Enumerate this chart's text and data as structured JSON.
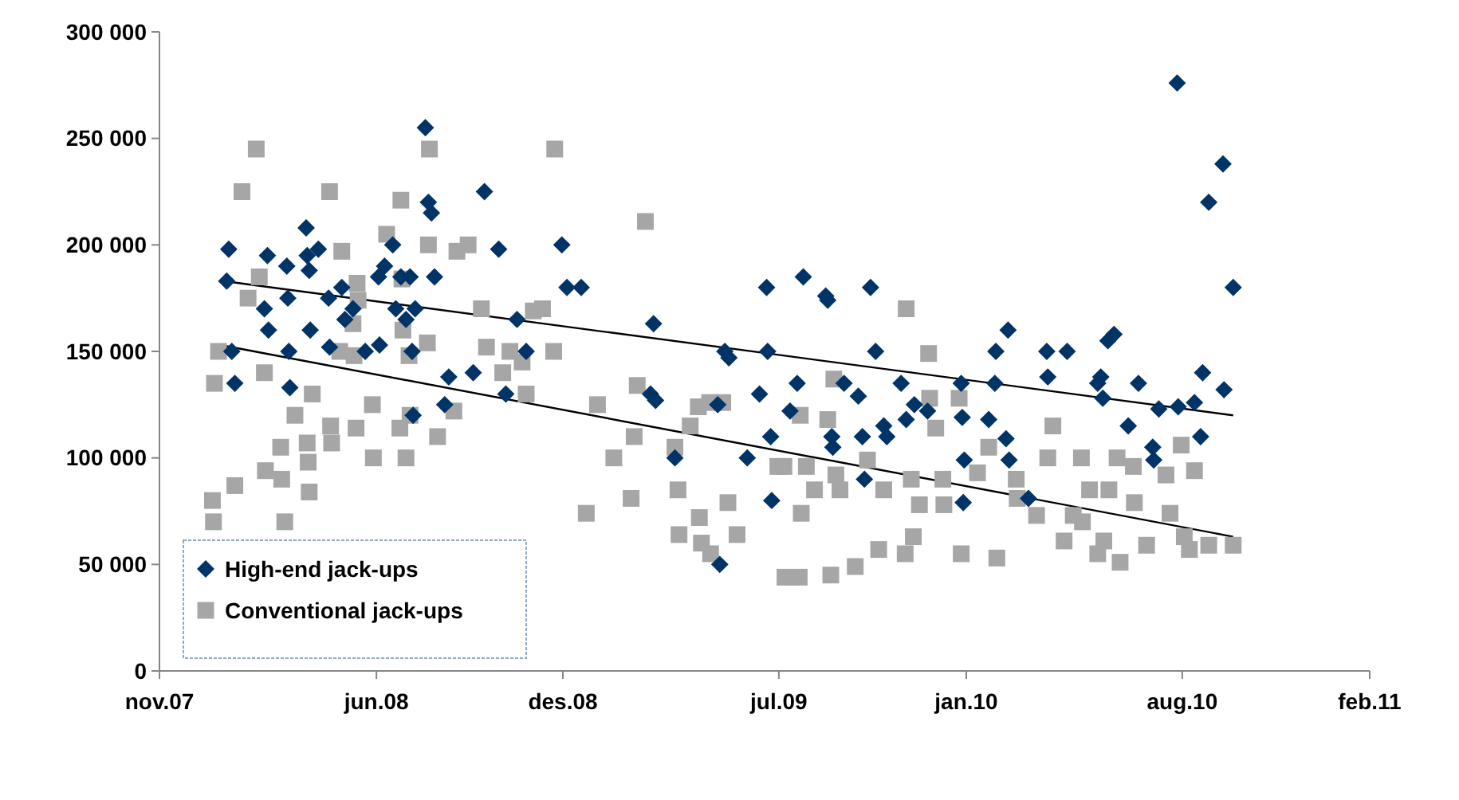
{
  "chart_data": {
    "type": "scatter",
    "xlim": [
      "2007-11-01",
      "2011-02-01"
    ],
    "xticks": [
      {
        "value": "2007-11-01",
        "label": "nov.07"
      },
      {
        "value": "2008-06-01",
        "label": "jun.08"
      },
      {
        "value": "2008-12-01",
        "label": "des.08"
      },
      {
        "value": "2009-07-01",
        "label": "jul.09"
      },
      {
        "value": "2010-01-01",
        "label": "jan.10"
      },
      {
        "value": "2010-08-01",
        "label": "aug.10"
      },
      {
        "value": "2011-02-01",
        "label": "feb.11"
      }
    ],
    "ylim": [
      0,
      300000
    ],
    "yticks": [
      {
        "value": 0,
        "label": "0"
      },
      {
        "value": 50000,
        "label": "50 000"
      },
      {
        "value": 100000,
        "label": "100 000"
      },
      {
        "value": 150000,
        "label": "150 000"
      },
      {
        "value": 200000,
        "label": "200 000"
      },
      {
        "value": 250000,
        "label": "250 000"
      },
      {
        "value": 300000,
        "label": "300 000"
      }
    ],
    "grid": false,
    "legend": "bottom left",
    "series": [
      {
        "name": "High-end jack-ups",
        "marker": "diamond",
        "color": "#003366",
        "x": [
          "2008-01-08",
          "2008-01-06",
          "2008-01-11",
          "2008-01-14",
          "2008-02-12",
          "2008-02-15",
          "2008-02-16",
          "2008-03-05",
          "2008-03-06",
          "2008-03-07",
          "2008-03-08",
          "2008-03-24",
          "2008-03-25",
          "2008-03-27",
          "2008-03-28",
          "2008-04-05",
          "2008-04-15",
          "2008-04-16",
          "2008-04-28",
          "2008-05-01",
          "2008-05-09",
          "2008-05-21",
          "2008-06-03",
          "2008-06-04",
          "2008-06-09",
          "2008-06-17",
          "2008-06-20",
          "2008-06-25",
          "2008-06-30",
          "2008-07-04",
          "2008-07-06",
          "2008-07-07",
          "2008-07-09",
          "2008-07-19",
          "2008-07-22",
          "2008-07-25",
          "2008-07-28",
          "2008-08-07",
          "2008-08-11",
          "2008-09-04",
          "2008-09-15",
          "2008-09-29",
          "2008-10-06",
          "2008-10-17",
          "2008-10-26",
          "2008-11-30",
          "2008-12-05",
          "2008-12-19",
          "2009-02-28",
          "2009-02-25",
          "2009-03-02",
          "2009-03-21",
          "2009-05-02",
          "2009-05-04",
          "2009-05-09",
          "2009-05-13",
          "2009-05-31",
          "2009-06-12",
          "2009-06-19",
          "2009-06-20",
          "2009-06-23",
          "2009-06-24",
          "2009-07-12",
          "2009-07-19",
          "2009-07-25",
          "2009-08-16",
          "2009-08-18",
          "2009-08-22",
          "2009-08-23",
          "2009-09-03",
          "2009-09-17",
          "2009-09-21",
          "2009-09-23",
          "2009-09-29",
          "2009-10-04",
          "2009-10-12",
          "2009-10-15",
          "2009-10-29",
          "2009-11-03",
          "2009-11-11",
          "2009-11-24",
          "2009-12-27",
          "2009-12-28",
          "2009-12-30",
          "2009-12-29",
          "2010-01-23",
          "2010-01-29",
          "2010-01-30",
          "2010-02-11",
          "2010-02-09",
          "2010-02-12",
          "2010-03-03",
          "2010-03-21",
          "2010-03-22",
          "2010-04-10",
          "2010-05-10",
          "2010-05-13",
          "2010-05-15",
          "2010-05-20",
          "2010-05-26",
          "2010-06-09",
          "2010-06-19",
          "2010-07-03",
          "2010-07-04",
          "2010-07-09",
          "2010-07-28",
          "2010-07-27",
          "2010-08-13",
          "2010-08-19",
          "2010-08-21",
          "2010-08-27",
          "2010-09-10",
          "2010-09-11",
          "2010-09-20"
        ],
        "values": [
          198000,
          183000,
          150000,
          135000,
          170000,
          195000,
          160000,
          190000,
          175000,
          150000,
          133000,
          208000,
          195000,
          188000,
          160000,
          198000,
          175000,
          152000,
          180000,
          165000,
          170000,
          150000,
          185000,
          153000,
          190000,
          200000,
          170000,
          185000,
          165000,
          185000,
          150000,
          120000,
          170000,
          255000,
          220000,
          215000,
          185000,
          125000,
          138000,
          140000,
          225000,
          198000,
          130000,
          165000,
          150000,
          200000,
          180000,
          180000,
          163000,
          130000,
          127000,
          100000,
          125000,
          50000,
          150000,
          147000,
          100000,
          130000,
          180000,
          150000,
          110000,
          80000,
          122000,
          135000,
          185000,
          176000,
          174000,
          110000,
          105000,
          135000,
          129000,
          110000,
          90000,
          180000,
          150000,
          115000,
          110000,
          135000,
          118000,
          125000,
          122000,
          135000,
          119000,
          99000,
          79000,
          118000,
          135000,
          150000,
          160000,
          109000,
          99000,
          81000,
          150000,
          138000,
          150000,
          135000,
          138000,
          128000,
          155000,
          158000,
          115000,
          135000,
          105000,
          99000,
          123000,
          124000,
          276000,
          126000,
          110000,
          140000,
          220000,
          238000,
          132000,
          180000
        ]
      },
      {
        "name": "Conventional jack-ups",
        "marker": "square",
        "color": "#a6a6a6",
        "x": [
          "2007-12-23",
          "2007-12-24",
          "2007-12-25",
          "2007-12-29",
          "2008-01-14",
          "2008-01-21",
          "2008-01-27",
          "2008-02-04",
          "2008-02-07",
          "2008-02-12",
          "2008-02-13",
          "2008-02-28",
          "2008-02-29",
          "2008-03-03",
          "2008-03-13",
          "2008-03-25",
          "2008-03-26",
          "2008-03-27",
          "2008-03-30",
          "2008-04-16",
          "2008-04-18",
          "2008-04-17",
          "2008-04-26",
          "2008-04-28",
          "2008-05-09",
          "2008-05-10",
          "2008-05-12",
          "2008-05-13",
          "2008-05-14",
          "2008-05-28",
          "2008-05-29",
          "2008-06-11",
          "2008-06-25",
          "2008-06-26",
          "2008-06-27",
          "2008-06-24",
          "2008-06-30",
          "2008-07-03",
          "2008-07-04",
          "2008-07-22",
          "2008-07-21",
          "2008-07-23",
          "2008-07-31",
          "2008-08-16",
          "2008-08-19",
          "2008-08-30",
          "2008-09-12",
          "2008-09-17",
          "2008-10-03",
          "2008-10-10",
          "2008-10-22",
          "2008-10-26",
          "2008-11-02",
          "2008-11-11",
          "2008-11-22",
          "2008-11-23",
          "2008-12-24",
          "2009-01-04",
          "2009-01-20",
          "2009-02-06",
          "2009-02-09",
          "2009-02-12",
          "2009-02-20",
          "2009-03-21",
          "2009-03-24",
          "2009-03-25",
          "2009-04-05",
          "2009-04-13",
          "2009-04-14",
          "2009-04-16",
          "2009-04-24",
          "2009-04-25",
          "2009-05-07",
          "2009-05-12",
          "2009-05-21",
          "2009-06-30",
          "2009-07-06",
          "2009-07-07",
          "2009-07-22",
          "2009-07-23",
          "2009-07-21",
          "2009-07-28",
          "2009-08-05",
          "2009-08-18",
          "2009-08-21",
          "2009-08-24",
          "2009-08-26",
          "2009-08-30",
          "2009-09-14",
          "2009-09-26",
          "2009-10-07",
          "2009-10-12",
          "2009-11-02",
          "2009-11-03",
          "2009-11-08",
          "2009-11-10",
          "2009-11-16",
          "2009-11-25",
          "2009-11-26",
          "2009-12-02",
          "2009-12-09",
          "2009-12-10",
          "2009-12-25",
          "2009-12-27",
          "2010-01-12",
          "2010-01-23",
          "2010-01-31",
          "2010-02-19",
          "2010-02-20",
          "2010-03-11",
          "2010-03-22",
          "2010-03-27",
          "2010-04-07",
          "2010-04-16",
          "2010-04-24",
          "2010-04-25",
          "2010-05-02",
          "2010-05-10",
          "2010-05-16",
          "2010-05-21",
          "2010-05-29",
          "2010-06-01",
          "2010-06-14",
          "2010-06-15",
          "2010-06-27",
          "2010-07-16",
          "2010-07-20",
          "2010-07-31",
          "2010-08-03",
          "2010-08-08",
          "2010-08-13",
          "2010-08-27",
          "2010-09-20"
        ],
        "values": [
          80000,
          70000,
          135000,
          150000,
          87000,
          225000,
          175000,
          245000,
          185000,
          140000,
          94000,
          105000,
          90000,
          70000,
          120000,
          107000,
          98000,
          84000,
          130000,
          225000,
          107000,
          115000,
          150000,
          197000,
          163000,
          148000,
          114000,
          182000,
          174000,
          125000,
          100000,
          205000,
          221000,
          184000,
          160000,
          114000,
          100000,
          148000,
          120000,
          200000,
          154000,
          245000,
          110000,
          122000,
          197000,
          200000,
          170000,
          152000,
          140000,
          150000,
          145000,
          130000,
          169000,
          170000,
          150000,
          245000,
          74000,
          125000,
          100000,
          81000,
          110000,
          134000,
          211000,
          105000,
          85000,
          64000,
          115000,
          124000,
          72000,
          60000,
          126000,
          55000,
          126000,
          79000,
          64000,
          96000,
          96000,
          44000,
          120000,
          74000,
          44000,
          96000,
          85000,
          118000,
          45000,
          137000,
          92000,
          85000,
          49000,
          99000,
          57000,
          85000,
          55000,
          170000,
          90000,
          63000,
          78000,
          149000,
          128000,
          114000,
          90000,
          78000,
          128000,
          55000,
          93000,
          105000,
          53000,
          90000,
          81000,
          73000,
          100000,
          115000,
          61000,
          73000,
          100000,
          70000,
          85000,
          55000,
          61000,
          85000,
          100000,
          51000,
          96000,
          79000,
          59000,
          92000,
          74000,
          106000,
          63000,
          57000,
          94000,
          59000,
          59000
        ]
      },
      {
        "type": "line",
        "color": "#000000",
        "x": [
          "2008-01-03",
          "2010-09-20"
        ],
        "values": [
          183000,
          120000
        ]
      },
      {
        "type": "line",
        "color": "#000000",
        "x": [
          "2007-12-31",
          "2010-09-20"
        ],
        "values": [
          153000,
          63000
        ]
      }
    ]
  }
}
